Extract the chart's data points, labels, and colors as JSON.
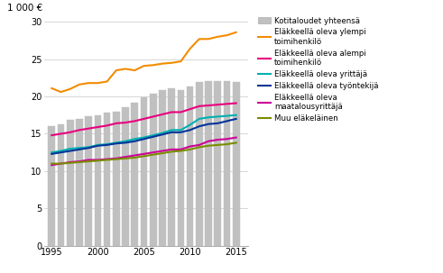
{
  "years": [
    1995,
    1996,
    1997,
    1998,
    1999,
    2000,
    2001,
    2002,
    2003,
    2004,
    2005,
    2006,
    2007,
    2008,
    2009,
    2010,
    2011,
    2012,
    2013,
    2014,
    2015
  ],
  "bar_values": [
    16.0,
    16.3,
    16.9,
    17.0,
    17.3,
    17.5,
    17.8,
    18.0,
    18.6,
    19.2,
    19.9,
    20.4,
    20.8,
    21.1,
    20.8,
    21.3,
    21.9,
    22.1,
    22.1,
    22.1,
    21.9
  ],
  "line_ylempi": [
    21.1,
    20.6,
    21.0,
    21.6,
    21.8,
    21.8,
    22.0,
    23.5,
    23.7,
    23.5,
    24.1,
    24.2,
    24.4,
    24.5,
    24.7,
    26.4,
    27.7,
    27.7,
    28.0,
    28.2,
    28.6
  ],
  "line_alempi": [
    14.8,
    15.0,
    15.2,
    15.5,
    15.7,
    15.9,
    16.1,
    16.4,
    16.5,
    16.7,
    17.0,
    17.3,
    17.6,
    17.9,
    17.9,
    18.3,
    18.7,
    18.8,
    18.9,
    19.0,
    19.1
  ],
  "line_yrittaja": [
    12.5,
    12.7,
    13.0,
    13.1,
    13.2,
    13.5,
    13.6,
    13.8,
    14.0,
    14.3,
    14.5,
    14.8,
    15.1,
    15.5,
    15.5,
    16.2,
    17.0,
    17.2,
    17.3,
    17.4,
    17.5
  ],
  "line_tyontekija": [
    12.3,
    12.5,
    12.7,
    12.9,
    13.1,
    13.4,
    13.5,
    13.7,
    13.8,
    14.0,
    14.3,
    14.6,
    14.9,
    15.2,
    15.2,
    15.5,
    16.0,
    16.3,
    16.4,
    16.7,
    17.0
  ],
  "line_maatalous": [
    10.8,
    11.0,
    11.2,
    11.3,
    11.5,
    11.5,
    11.6,
    11.7,
    11.9,
    12.1,
    12.3,
    12.5,
    12.7,
    12.9,
    12.9,
    13.3,
    13.5,
    14.0,
    14.2,
    14.3,
    14.5
  ],
  "line_muu": [
    11.0,
    11.0,
    11.1,
    11.2,
    11.3,
    11.4,
    11.5,
    11.6,
    11.7,
    11.8,
    12.0,
    12.2,
    12.4,
    12.6,
    12.7,
    12.9,
    13.2,
    13.4,
    13.5,
    13.6,
    13.8
  ],
  "bar_color": "#c0c0c0",
  "bar_edgecolor": "#c0c0c0",
  "color_ylempi": "#f28c00",
  "color_alempi": "#e8007d",
  "color_yrittaja": "#00b0b0",
  "color_tyontekija": "#003399",
  "color_maatalous": "#cc0099",
  "color_muu": "#7b8c00",
  "ylabel": "1 000 €",
  "ylim": [
    0,
    30
  ],
  "yticks": [
    0,
    5,
    10,
    15,
    20,
    25,
    30
  ],
  "xlim": [
    1994.2,
    2016.3
  ],
  "xticks": [
    1995,
    2000,
    2005,
    2010,
    2015
  ],
  "legend_labels": [
    "Kotitaloudet yhteensä",
    "Eläkkeellä oleva ylempi\ntoimihenkilö",
    "Eläkkeellä oleva alempi\ntoimihenkilö",
    "Eläkkeellä oleva yrittäjä",
    "Eläkkeellä oleva työntekijä",
    "Eläkkeellä oleva\nmaatalousyrittäjä",
    "Muu eläkeläinen"
  ],
  "grid_color": "#d0d0d0",
  "line_width": 1.5,
  "bar_width": 0.75
}
